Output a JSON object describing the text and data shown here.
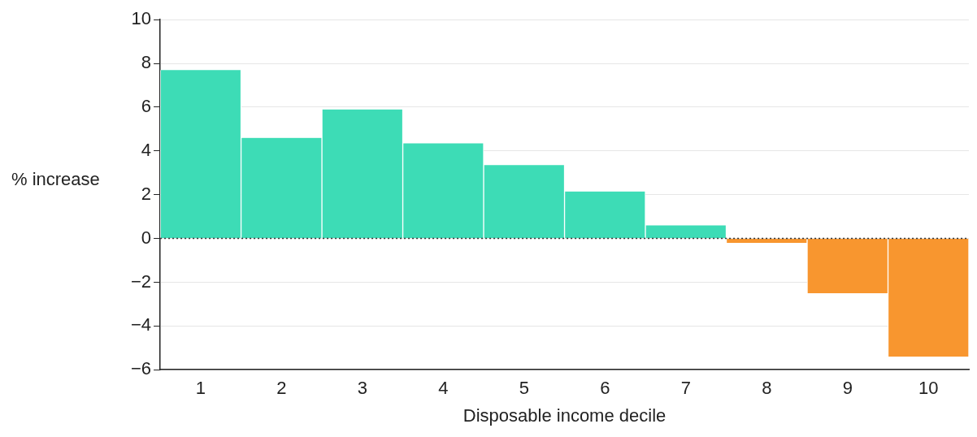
{
  "chart_data": {
    "type": "bar",
    "xlabel": "Disposable income decile",
    "ylabel": "% increase",
    "categories": [
      "1",
      "2",
      "3",
      "4",
      "5",
      "6",
      "7",
      "8",
      "9",
      "10"
    ],
    "values": [
      7.7,
      4.6,
      5.9,
      4.35,
      3.35,
      2.15,
      0.6,
      -0.2,
      -2.5,
      -5.4
    ],
    "colors": [
      "#3ddcb6",
      "#3ddcb6",
      "#3ddcb6",
      "#3ddcb6",
      "#3ddcb6",
      "#3ddcb6",
      "#3ddcb6",
      "#f8962f",
      "#f8962f",
      "#f8962f"
    ],
    "ylim": [
      -6,
      10
    ],
    "yticks": [
      {
        "value": -6,
        "label": "−6"
      },
      {
        "value": -4,
        "label": "−4"
      },
      {
        "value": -2,
        "label": "−2"
      },
      0,
      2,
      4,
      6,
      8,
      10
    ],
    "grid": "y",
    "ref_lines": [
      {
        "axis": "y",
        "value": 0,
        "line_style": "dotted",
        "color": "#333333"
      }
    ]
  }
}
